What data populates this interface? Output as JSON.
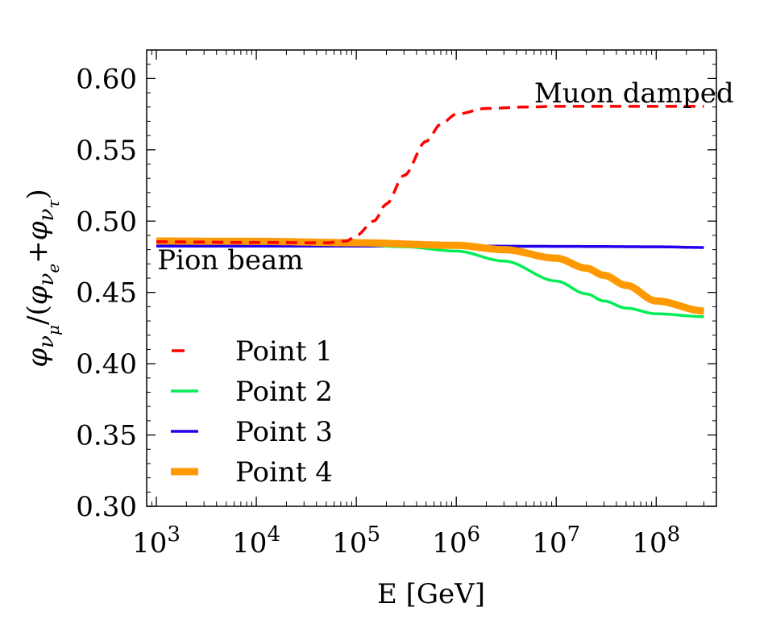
{
  "chart_data": {
    "type": "line",
    "title": "",
    "xlabel": "E [GeV]",
    "ylabel": "φνμ/(φνe+φντ)",
    "ylabel_parts": {
      "phi": "φ",
      "nu": "ν",
      "mu": "μ",
      "e": "e",
      "tau": "τ"
    },
    "xscale": "log",
    "xlim": [
      800,
      400000000
    ],
    "ylim": [
      0.3,
      0.62
    ],
    "x_ticks": [
      {
        "exp": 3,
        "base": "10",
        "power": "3"
      },
      {
        "exp": 4,
        "base": "10",
        "power": "4"
      },
      {
        "exp": 5,
        "base": "10",
        "power": "5"
      },
      {
        "exp": 6,
        "base": "10",
        "power": "6"
      },
      {
        "exp": 7,
        "base": "10",
        "power": "7"
      },
      {
        "exp": 8,
        "base": "10",
        "power": "8"
      }
    ],
    "y_ticks": [
      {
        "value": 0.3,
        "label": "0.30"
      },
      {
        "value": 0.35,
        "label": "0.35"
      },
      {
        "value": 0.4,
        "label": "0.40"
      },
      {
        "value": 0.45,
        "label": "0.45"
      },
      {
        "value": 0.5,
        "label": "0.50"
      },
      {
        "value": 0.55,
        "label": "0.55"
      },
      {
        "value": 0.6,
        "label": "0.60"
      }
    ],
    "annotations": [
      {
        "text": "Muon damped",
        "x": 60000000,
        "y": 0.59
      },
      {
        "text": "Pion beam",
        "x": 5500,
        "y": 0.473
      }
    ],
    "legend_location": "lower-left",
    "series": [
      {
        "name": "Point 1",
        "color": "#ff0000",
        "style": "dashed",
        "width": 3.5,
        "x": [
          1000,
          10000,
          50000,
          80000,
          100000,
          150000,
          200000,
          300000,
          500000,
          700000,
          1000000,
          2000000,
          5000000,
          10000000,
          100000000,
          300000000
        ],
        "y": [
          0.4855,
          0.485,
          0.4848,
          0.486,
          0.49,
          0.5,
          0.512,
          0.532,
          0.556,
          0.568,
          0.575,
          0.579,
          0.58,
          0.5805,
          0.5805,
          0.5805
        ]
      },
      {
        "name": "Point 2",
        "color": "#00ee55",
        "style": "solid",
        "width": 3.5,
        "x": [
          1000,
          10000,
          100000,
          300000,
          1000000,
          3000000,
          10000000,
          20000000,
          30000000,
          50000000,
          100000000,
          300000000
        ],
        "y": [
          0.4855,
          0.485,
          0.4835,
          0.482,
          0.479,
          0.472,
          0.458,
          0.449,
          0.444,
          0.439,
          0.435,
          0.433
        ]
      },
      {
        "name": "Point 3",
        "color": "#2200ee",
        "style": "solid",
        "width": 3.5,
        "x": [
          1000,
          10000,
          100000,
          1000000,
          10000000,
          100000000,
          300000000
        ],
        "y": [
          0.4825,
          0.4825,
          0.4825,
          0.4825,
          0.4823,
          0.482,
          0.4815
        ]
      },
      {
        "name": "Point 4",
        "color": "#ff9900",
        "style": "solid",
        "width": 9,
        "x": [
          1000,
          10000,
          100000,
          1000000,
          3000000,
          10000000,
          20000000,
          30000000,
          50000000,
          100000000,
          300000000
        ],
        "y": [
          0.486,
          0.4858,
          0.4848,
          0.483,
          0.48,
          0.474,
          0.467,
          0.462,
          0.455,
          0.444,
          0.437
        ]
      }
    ]
  }
}
